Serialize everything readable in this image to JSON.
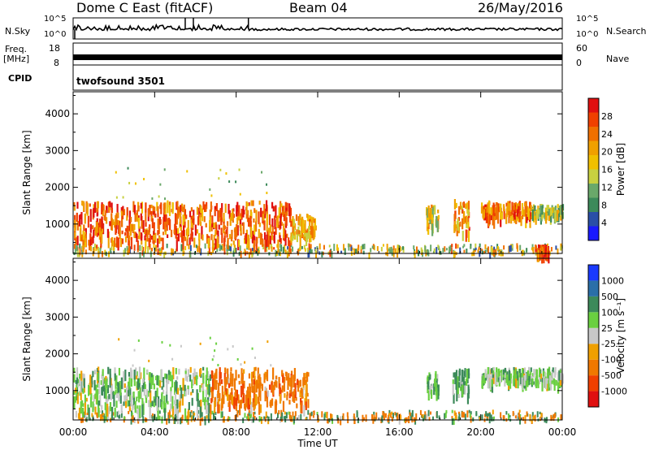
{
  "header": {
    "station": "Dome C East (fitACF)",
    "beam": "Beam 04",
    "date": "26/May/2016"
  },
  "noise_panel": {
    "left_label": "N.Sky",
    "left_top_tick": "10^5",
    "left_bot_tick": "10^0",
    "right_label": "N.Search",
    "right_top_tick": "10^5",
    "right_bot_tick": "10^0"
  },
  "freq_panel": {
    "left_label_1": "Freq.",
    "left_label_2": "[MHz]",
    "left_top_tick": "18",
    "left_bot_tick": "8",
    "right_label": "Nave",
    "right_top_tick": "60",
    "right_bot_tick": "0"
  },
  "cpid_panel": {
    "label": "CPID",
    "program": "twofsound 3501"
  },
  "colors": {
    "power": [
      "#1a1aff",
      "#2a4fa8",
      "#3c8a5a",
      "#6aa86a",
      "#c8d040",
      "#f0c000",
      "#f0a000",
      "#f07000",
      "#f04000",
      "#e01010"
    ],
    "velocity": [
      "#e01010",
      "#f04000",
      "#f07800",
      "#f0a000",
      "#c8c8c8",
      "#6ad040",
      "#3c8a5a",
      "#2a6fa8",
      "#1a3aff"
    ]
  },
  "chart_data": [
    {
      "type": "heatmap",
      "panel": "power",
      "ylabel": "Slant Range [km]",
      "ylim": [
        200,
        4600
      ],
      "yticks": [
        "1000",
        "2000",
        "3000",
        "4000"
      ],
      "colorbar_label": "Power [dB]",
      "colorbar_ticks": [
        "4",
        "8",
        "12",
        "16",
        "20",
        "24",
        "28"
      ],
      "colorbar_range": [
        0,
        32
      ],
      "regions": [
        {
          "t0": 0.0,
          "t1": 10.7,
          "r0": 550,
          "r1": 1650,
          "value": 25
        },
        {
          "t0": 10.7,
          "t1": 11.9,
          "r0": 700,
          "r1": 1300,
          "value": 20
        },
        {
          "t0": 17.3,
          "t1": 17.9,
          "r0": 1000,
          "r1": 1550,
          "value": 18
        },
        {
          "t0": 18.6,
          "t1": 19.4,
          "r0": 800,
          "r1": 1700,
          "value": 22
        },
        {
          "t0": 20.0,
          "t1": 22.4,
          "r0": 1200,
          "r1": 1650,
          "value": 24
        },
        {
          "t0": 22.4,
          "t1": 24.0,
          "r0": 1300,
          "r1": 1550,
          "value": 14
        },
        {
          "t0": 22.6,
          "t1": 23.3,
          "r0": 230,
          "r1": 450,
          "value": 26
        }
      ]
    },
    {
      "type": "heatmap",
      "panel": "velocity",
      "xlabel": "Time UT",
      "xticks": [
        "00:00",
        "04:00",
        "08:00",
        "12:00",
        "16:00",
        "20:00",
        "00:00"
      ],
      "xlim_hours": [
        0,
        24
      ],
      "ylabel": "Slant Range [km]",
      "ylim": [
        200,
        4600
      ],
      "yticks": [
        "1000",
        "2000",
        "3000",
        "4000"
      ],
      "colorbar_label": "Velocity [m s⁻¹]",
      "colorbar_ticks": [
        "1000",
        "500",
        "100",
        "25",
        "-25",
        "-100",
        "-500",
        "-1000"
      ],
      "regions": [
        {
          "t0": 0.0,
          "t1": 6.7,
          "r0": 500,
          "r1": 1650,
          "value": 50
        },
        {
          "t0": 6.7,
          "t1": 11.5,
          "r0": 600,
          "r1": 1650,
          "value": -300
        },
        {
          "t0": 17.3,
          "t1": 17.9,
          "r0": 1000,
          "r1": 1550,
          "value": 80
        },
        {
          "t0": 18.6,
          "t1": 19.4,
          "r0": 900,
          "r1": 1650,
          "value": 200
        },
        {
          "t0": 20.0,
          "t1": 24.0,
          "r0": 1250,
          "r1": 1650,
          "value": 60
        }
      ]
    }
  ]
}
